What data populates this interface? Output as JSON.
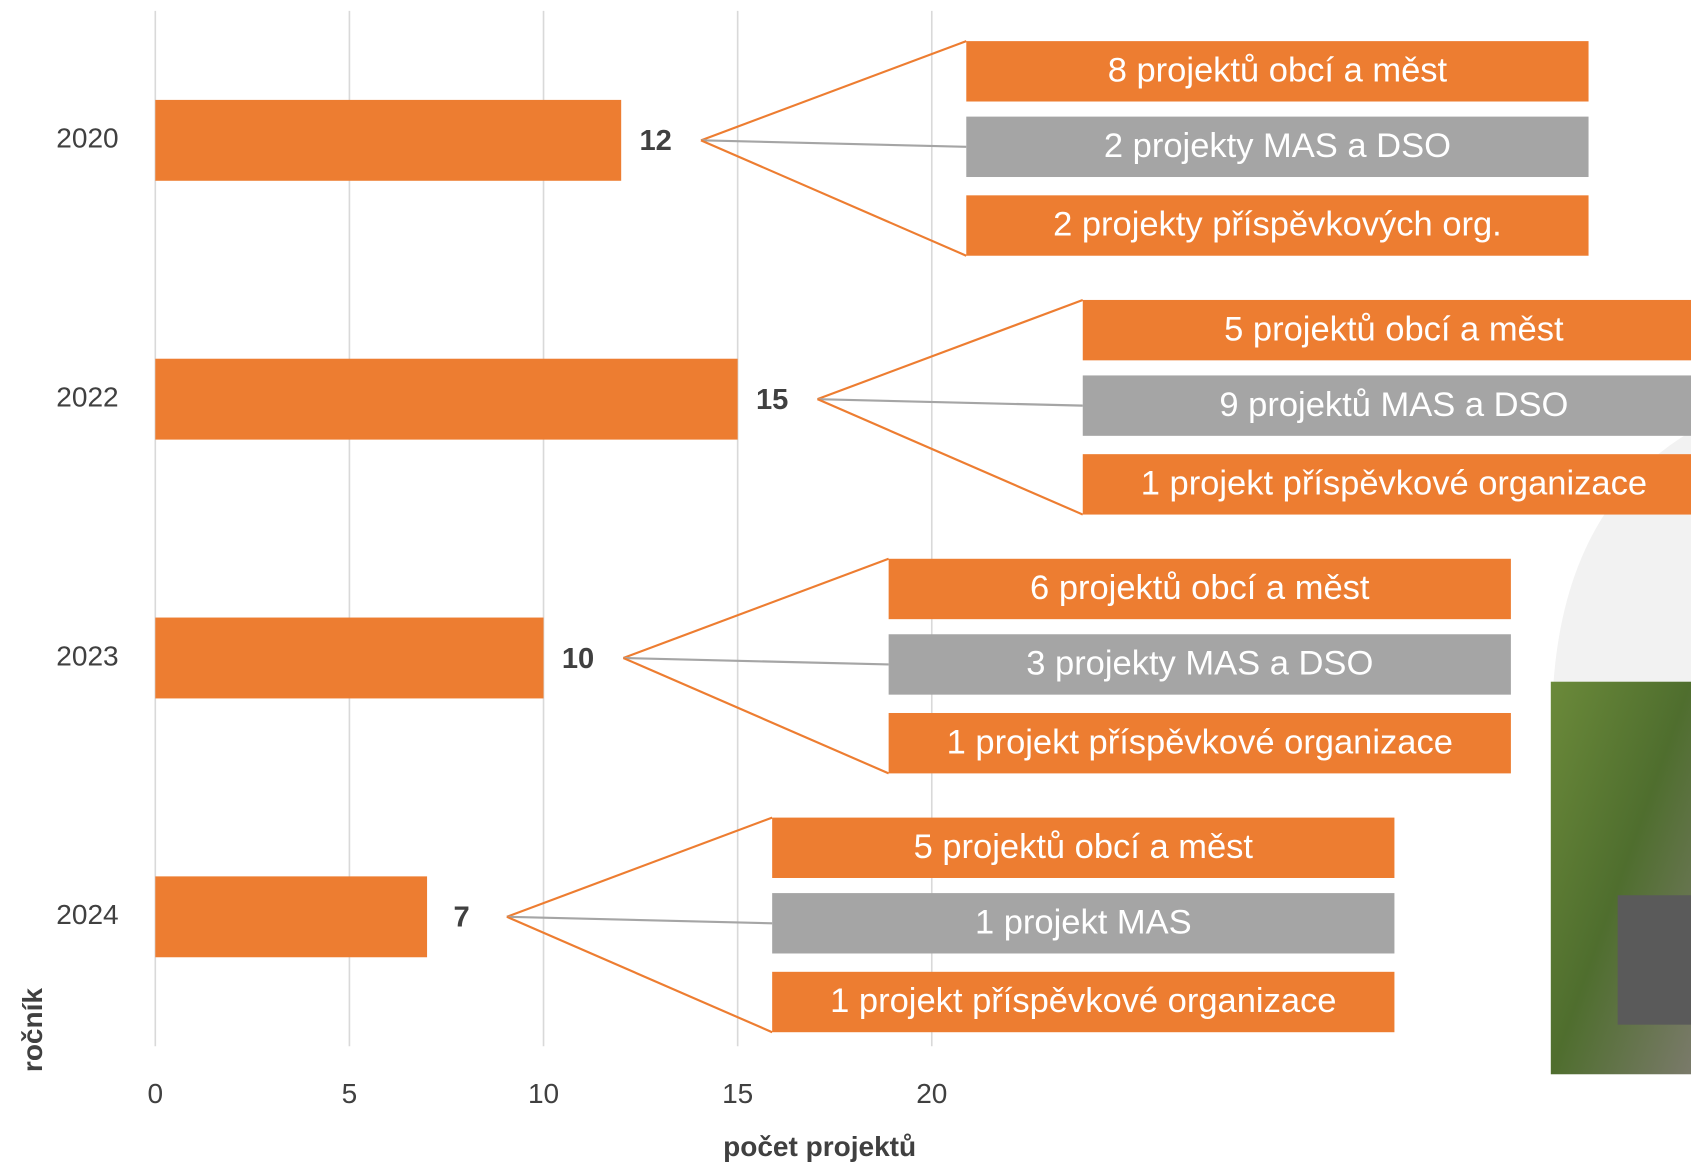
{
  "chart_data": {
    "type": "bar",
    "orientation": "horizontal",
    "x_label": "počet projektů",
    "y_label": "ročník",
    "categories": [
      "2020",
      "2022",
      "2023",
      "2024"
    ],
    "values": [
      12,
      15,
      10,
      7
    ],
    "color": "#ED7D31",
    "xlim": [
      0,
      20
    ],
    "xticks": [
      0,
      5,
      10,
      15,
      20
    ],
    "grid": true,
    "breakdowns": [
      [
        {
          "label": "8 projektů obcí a měst",
          "color": "#ED7D31"
        },
        {
          "label": "2 projekty MAS a DSO",
          "color": "#A5A5A5"
        },
        {
          "label": "2 projekty příspěvkových org.",
          "color": "#ED7D31"
        }
      ],
      [
        {
          "label": "5 projektů obcí a měst",
          "color": "#ED7D31"
        },
        {
          "label": "9 projektů MAS a DSO",
          "color": "#A5A5A5"
        },
        {
          "label": "1 projekt příspěvkové organizace",
          "color": "#ED7D31"
        }
      ],
      [
        {
          "label": "6 projektů obcí a měst",
          "color": "#ED7D31"
        },
        {
          "label": "3 projekty MAS a DSO",
          "color": "#A5A5A5"
        },
        {
          "label": "1 projekt příspěvkové organizace",
          "color": "#ED7D31"
        }
      ],
      [
        {
          "label": "5 projektů obcí a měst",
          "color": "#ED7D31"
        },
        {
          "label": "1 projekt MAS",
          "color": "#A5A5A5"
        },
        {
          "label": "1 projekt příspěvkové organizace",
          "color": "#ED7D31"
        }
      ]
    ]
  }
}
